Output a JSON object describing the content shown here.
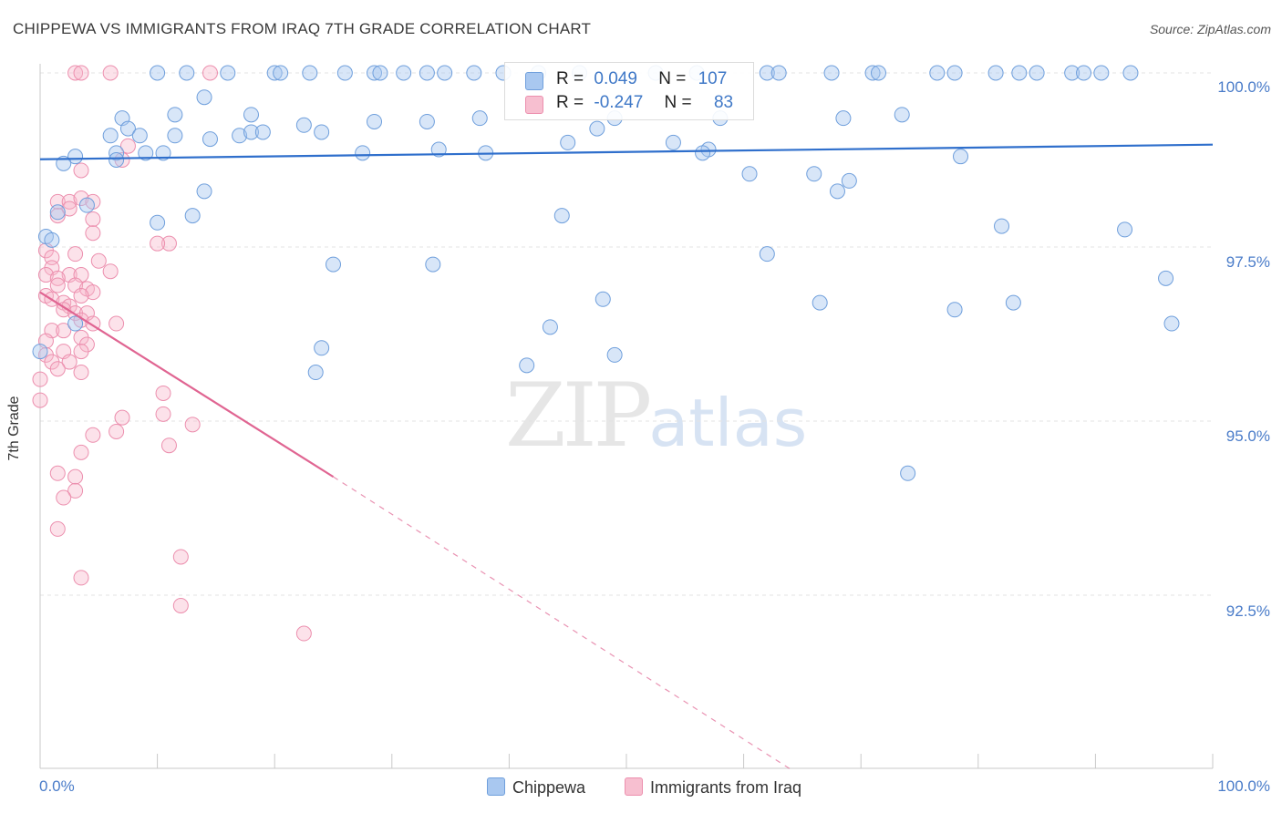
{
  "header": {
    "title": "CHIPPEWA VS IMMIGRANTS FROM IRAQ 7TH GRADE CORRELATION CHART",
    "source": "Source: ZipAtlas.com"
  },
  "watermark": {
    "zip": "ZIP",
    "atlas": "atlas"
  },
  "stats_box": {
    "rows": [
      {
        "r_label": "R =",
        "r_value": "0.049",
        "n_label": "N =",
        "n_value": "107",
        "color": "#a9c8f0"
      },
      {
        "r_label": "R =",
        "r_value": "-0.247",
        "n_label": "N =",
        "n_value": "83",
        "color": "#f7bfd0"
      }
    ]
  },
  "legend": [
    {
      "label": "Chippewa",
      "color": "#a9c8f0"
    },
    {
      "label": "Immigrants from Iraq",
      "color": "#f7bfd0"
    }
  ],
  "colors": {
    "blue_fill": "rgba(168,199,240,0.45)",
    "blue_stroke": "#6f9fdc",
    "blue_line": "#2f6fcc",
    "pink_fill": "rgba(247,182,202,0.40)",
    "pink_stroke": "#ec8fae",
    "pink_line": "#e06592",
    "grid": "#e3e3e3",
    "axis_text": "#4a7cc9"
  },
  "chart_data": {
    "type": "scatter",
    "title": "CHIPPEWA VS IMMIGRANTS FROM IRAQ 7TH GRADE CORRELATION CHART",
    "xlabel": "",
    "ylabel": "7th Grade",
    "xlim": [
      0,
      100
    ],
    "ylim": [
      90.0,
      100.6
    ],
    "x_tick_labels": [
      "0.0%",
      "100.0%"
    ],
    "y_ticks": [
      92.5,
      95.0,
      97.5,
      100.0
    ],
    "y_tick_labels": [
      "92.5%",
      "95.0%",
      "97.5%",
      "100.0%"
    ],
    "grid": "horizontal dashed",
    "legend_position": "bottom-center",
    "series": [
      {
        "name": "Chippewa",
        "r": 0.049,
        "n": 107,
        "trend": {
          "x": [
            0,
            100
          ],
          "y": [
            98.76,
            98.97
          ],
          "style": "solid"
        },
        "points": [
          [
            10,
            100
          ],
          [
            12.5,
            100
          ],
          [
            16,
            100
          ],
          [
            20,
            100
          ],
          [
            20.5,
            100
          ],
          [
            23,
            100
          ],
          [
            26,
            100
          ],
          [
            28.5,
            100
          ],
          [
            29,
            100
          ],
          [
            31,
            100
          ],
          [
            33,
            100
          ],
          [
            34.5,
            100
          ],
          [
            37,
            100
          ],
          [
            39.5,
            100
          ],
          [
            42.5,
            100
          ],
          [
            46,
            100
          ],
          [
            52.5,
            100
          ],
          [
            56,
            100
          ],
          [
            62,
            100
          ],
          [
            63,
            100
          ],
          [
            67.5,
            100
          ],
          [
            71,
            100
          ],
          [
            71.5,
            100
          ],
          [
            76.5,
            100
          ],
          [
            78,
            100
          ],
          [
            81.5,
            100
          ],
          [
            83.5,
            100
          ],
          [
            85,
            100
          ],
          [
            88,
            100
          ],
          [
            89,
            100
          ],
          [
            90.5,
            100
          ],
          [
            93,
            100
          ],
          [
            14,
            99.65
          ],
          [
            11.5,
            99.4
          ],
          [
            18,
            99.4
          ],
          [
            7,
            99.35
          ],
          [
            22.5,
            99.25
          ],
          [
            28.5,
            99.3
          ],
          [
            33,
            99.3
          ],
          [
            37.5,
            99.35
          ],
          [
            49,
            99.35
          ],
          [
            58,
            99.35
          ],
          [
            68.5,
            99.35
          ],
          [
            73.5,
            99.4
          ],
          [
            7.5,
            99.2
          ],
          [
            6,
            99.1
          ],
          [
            8.5,
            99.1
          ],
          [
            11.5,
            99.1
          ],
          [
            14.5,
            99.05
          ],
          [
            17,
            99.1
          ],
          [
            18,
            99.15
          ],
          [
            19,
            99.15
          ],
          [
            24,
            99.15
          ],
          [
            47.5,
            99.2
          ],
          [
            45,
            99.0
          ],
          [
            54,
            99.0
          ],
          [
            57,
            98.9
          ],
          [
            34,
            98.9
          ],
          [
            27.5,
            98.85
          ],
          [
            38,
            98.85
          ],
          [
            56.5,
            98.85
          ],
          [
            6.5,
            98.85
          ],
          [
            9,
            98.85
          ],
          [
            10.5,
            98.85
          ],
          [
            3,
            98.8
          ],
          [
            6.5,
            98.75
          ],
          [
            2,
            98.7
          ],
          [
            78.5,
            98.8
          ],
          [
            60.5,
            98.55
          ],
          [
            66,
            98.55
          ],
          [
            69,
            98.45
          ],
          [
            68,
            98.3
          ],
          [
            14,
            98.3
          ],
          [
            4,
            98.1
          ],
          [
            1.5,
            98.0
          ],
          [
            13,
            97.95
          ],
          [
            44.5,
            97.95
          ],
          [
            10,
            97.85
          ],
          [
            82,
            97.8
          ],
          [
            92.5,
            97.75
          ],
          [
            0.5,
            97.65
          ],
          [
            1,
            97.6
          ],
          [
            62,
            97.4
          ],
          [
            33.5,
            97.25
          ],
          [
            25,
            97.25
          ],
          [
            96,
            97.05
          ],
          [
            48,
            96.75
          ],
          [
            66.5,
            96.7
          ],
          [
            83,
            96.7
          ],
          [
            78,
            96.6
          ],
          [
            3,
            96.4
          ],
          [
            96.5,
            96.4
          ],
          [
            43.5,
            96.35
          ],
          [
            24,
            96.05
          ],
          [
            0,
            96.0
          ],
          [
            49,
            95.95
          ],
          [
            41.5,
            95.8
          ],
          [
            23.5,
            95.7
          ],
          [
            74,
            94.25
          ]
        ]
      },
      {
        "name": "Immigrants from Iraq",
        "r": -0.247,
        "n": 83,
        "trend": {
          "x": [
            0,
            25
          ],
          "y": [
            96.85,
            94.2
          ],
          "dashed_to": [
            64,
            90.0
          ],
          "style": "solid then dashed"
        },
        "points": [
          [
            3,
            100
          ],
          [
            3.5,
            100
          ],
          [
            6,
            100
          ],
          [
            14.5,
            100
          ],
          [
            7,
            98.75
          ],
          [
            7.5,
            98.95
          ],
          [
            3.5,
            98.6
          ],
          [
            1.5,
            98.15
          ],
          [
            2.5,
            98.15
          ],
          [
            2.5,
            98.05
          ],
          [
            3.5,
            98.2
          ],
          [
            4.5,
            98.15
          ],
          [
            1.5,
            97.95
          ],
          [
            4.5,
            97.9
          ],
          [
            4.5,
            97.7
          ],
          [
            11,
            97.55
          ],
          [
            10,
            97.55
          ],
          [
            0.5,
            97.45
          ],
          [
            1,
            97.35
          ],
          [
            3,
            97.4
          ],
          [
            5,
            97.3
          ],
          [
            1,
            97.2
          ],
          [
            2.5,
            97.1
          ],
          [
            0.5,
            97.1
          ],
          [
            3.5,
            97.1
          ],
          [
            6,
            97.15
          ],
          [
            1.5,
            97.05
          ],
          [
            1.5,
            96.95
          ],
          [
            3,
            96.95
          ],
          [
            4,
            96.9
          ],
          [
            4.5,
            96.85
          ],
          [
            3.5,
            96.8
          ],
          [
            0.5,
            96.8
          ],
          [
            1,
            96.75
          ],
          [
            2,
            96.7
          ],
          [
            2.5,
            96.65
          ],
          [
            2,
            96.6
          ],
          [
            3,
            96.55
          ],
          [
            4,
            96.55
          ],
          [
            3.5,
            96.45
          ],
          [
            4.5,
            96.4
          ],
          [
            1,
            96.3
          ],
          [
            2,
            96.3
          ],
          [
            0.5,
            96.15
          ],
          [
            3.5,
            96.2
          ],
          [
            4,
            96.1
          ],
          [
            2,
            96.0
          ],
          [
            3.5,
            96.0
          ],
          [
            0.5,
            95.95
          ],
          [
            1,
            95.85
          ],
          [
            2.5,
            95.85
          ],
          [
            1.5,
            95.75
          ],
          [
            3.5,
            95.7
          ],
          [
            0,
            95.6
          ],
          [
            10.5,
            95.4
          ],
          [
            0,
            95.3
          ],
          [
            10.5,
            95.1
          ],
          [
            7,
            95.05
          ],
          [
            13,
            94.95
          ],
          [
            6.5,
            94.85
          ],
          [
            4.5,
            94.8
          ],
          [
            11,
            94.65
          ],
          [
            3.5,
            94.55
          ],
          [
            1.5,
            94.25
          ],
          [
            3,
            94.2
          ],
          [
            3,
            94.0
          ],
          [
            2,
            93.9
          ],
          [
            1.5,
            93.45
          ],
          [
            12,
            93.05
          ],
          [
            3.5,
            92.75
          ],
          [
            12,
            92.35
          ],
          [
            22.5,
            91.95
          ],
          [
            6.5,
            96.4
          ]
        ]
      }
    ]
  }
}
